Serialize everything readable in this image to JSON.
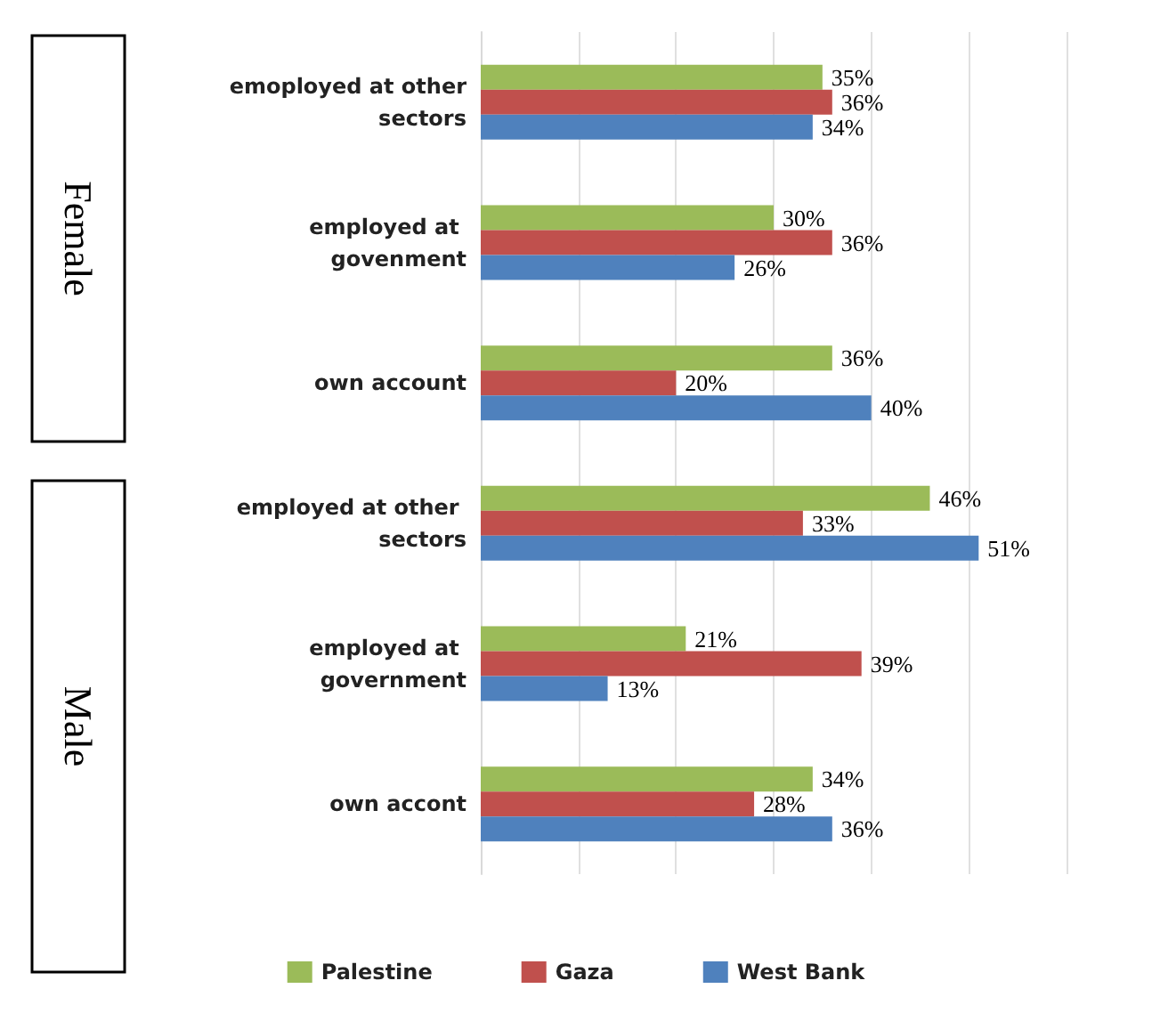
{
  "chart_data": {
    "type": "bar",
    "orientation": "horizontal",
    "categories": [
      "emoployed at other sectors",
      "employed at govenment",
      "own account",
      "employed at other sectors",
      "employed at government",
      "own accont"
    ],
    "series": [
      {
        "name": "Palestine",
        "color": "#9bbb59",
        "values": [
          35,
          30,
          36,
          46,
          21,
          34
        ],
        "value_labels": [
          "35%",
          "30%",
          "36%",
          "46%",
          "21%",
          "34%"
        ]
      },
      {
        "name": "Gaza",
        "color": "#c0504d",
        "values": [
          36,
          36,
          20,
          33,
          39,
          28
        ],
        "value_labels": [
          "36%",
          "36%",
          "20%",
          "33%",
          "39%",
          "28%"
        ]
      },
      {
        "name": "West Bank",
        "color": "#4f81bd",
        "values": [
          34,
          26,
          40,
          51,
          13,
          36
        ],
        "value_labels": [
          "34%",
          "26%",
          "40%",
          "51%",
          "13%",
          "36%"
        ]
      }
    ],
    "annotations": [
      "Female",
      "Male"
    ],
    "grid": "x",
    "legend": "bottom",
    "tick_labels": "y"
  }
}
